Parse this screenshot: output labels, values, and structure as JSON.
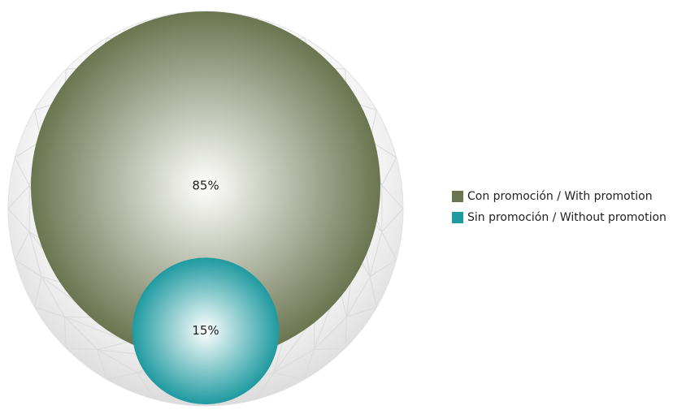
{
  "chart_data": {
    "type": "bubble",
    "categories": [
      "Con promoción / With promotion",
      "Sin promoción / Without promotion"
    ],
    "values": [
      85,
      15
    ],
    "value_labels": [
      "85%",
      "15%"
    ],
    "colors": [
      "#6b7550",
      "#1e9aa0"
    ]
  }
}
